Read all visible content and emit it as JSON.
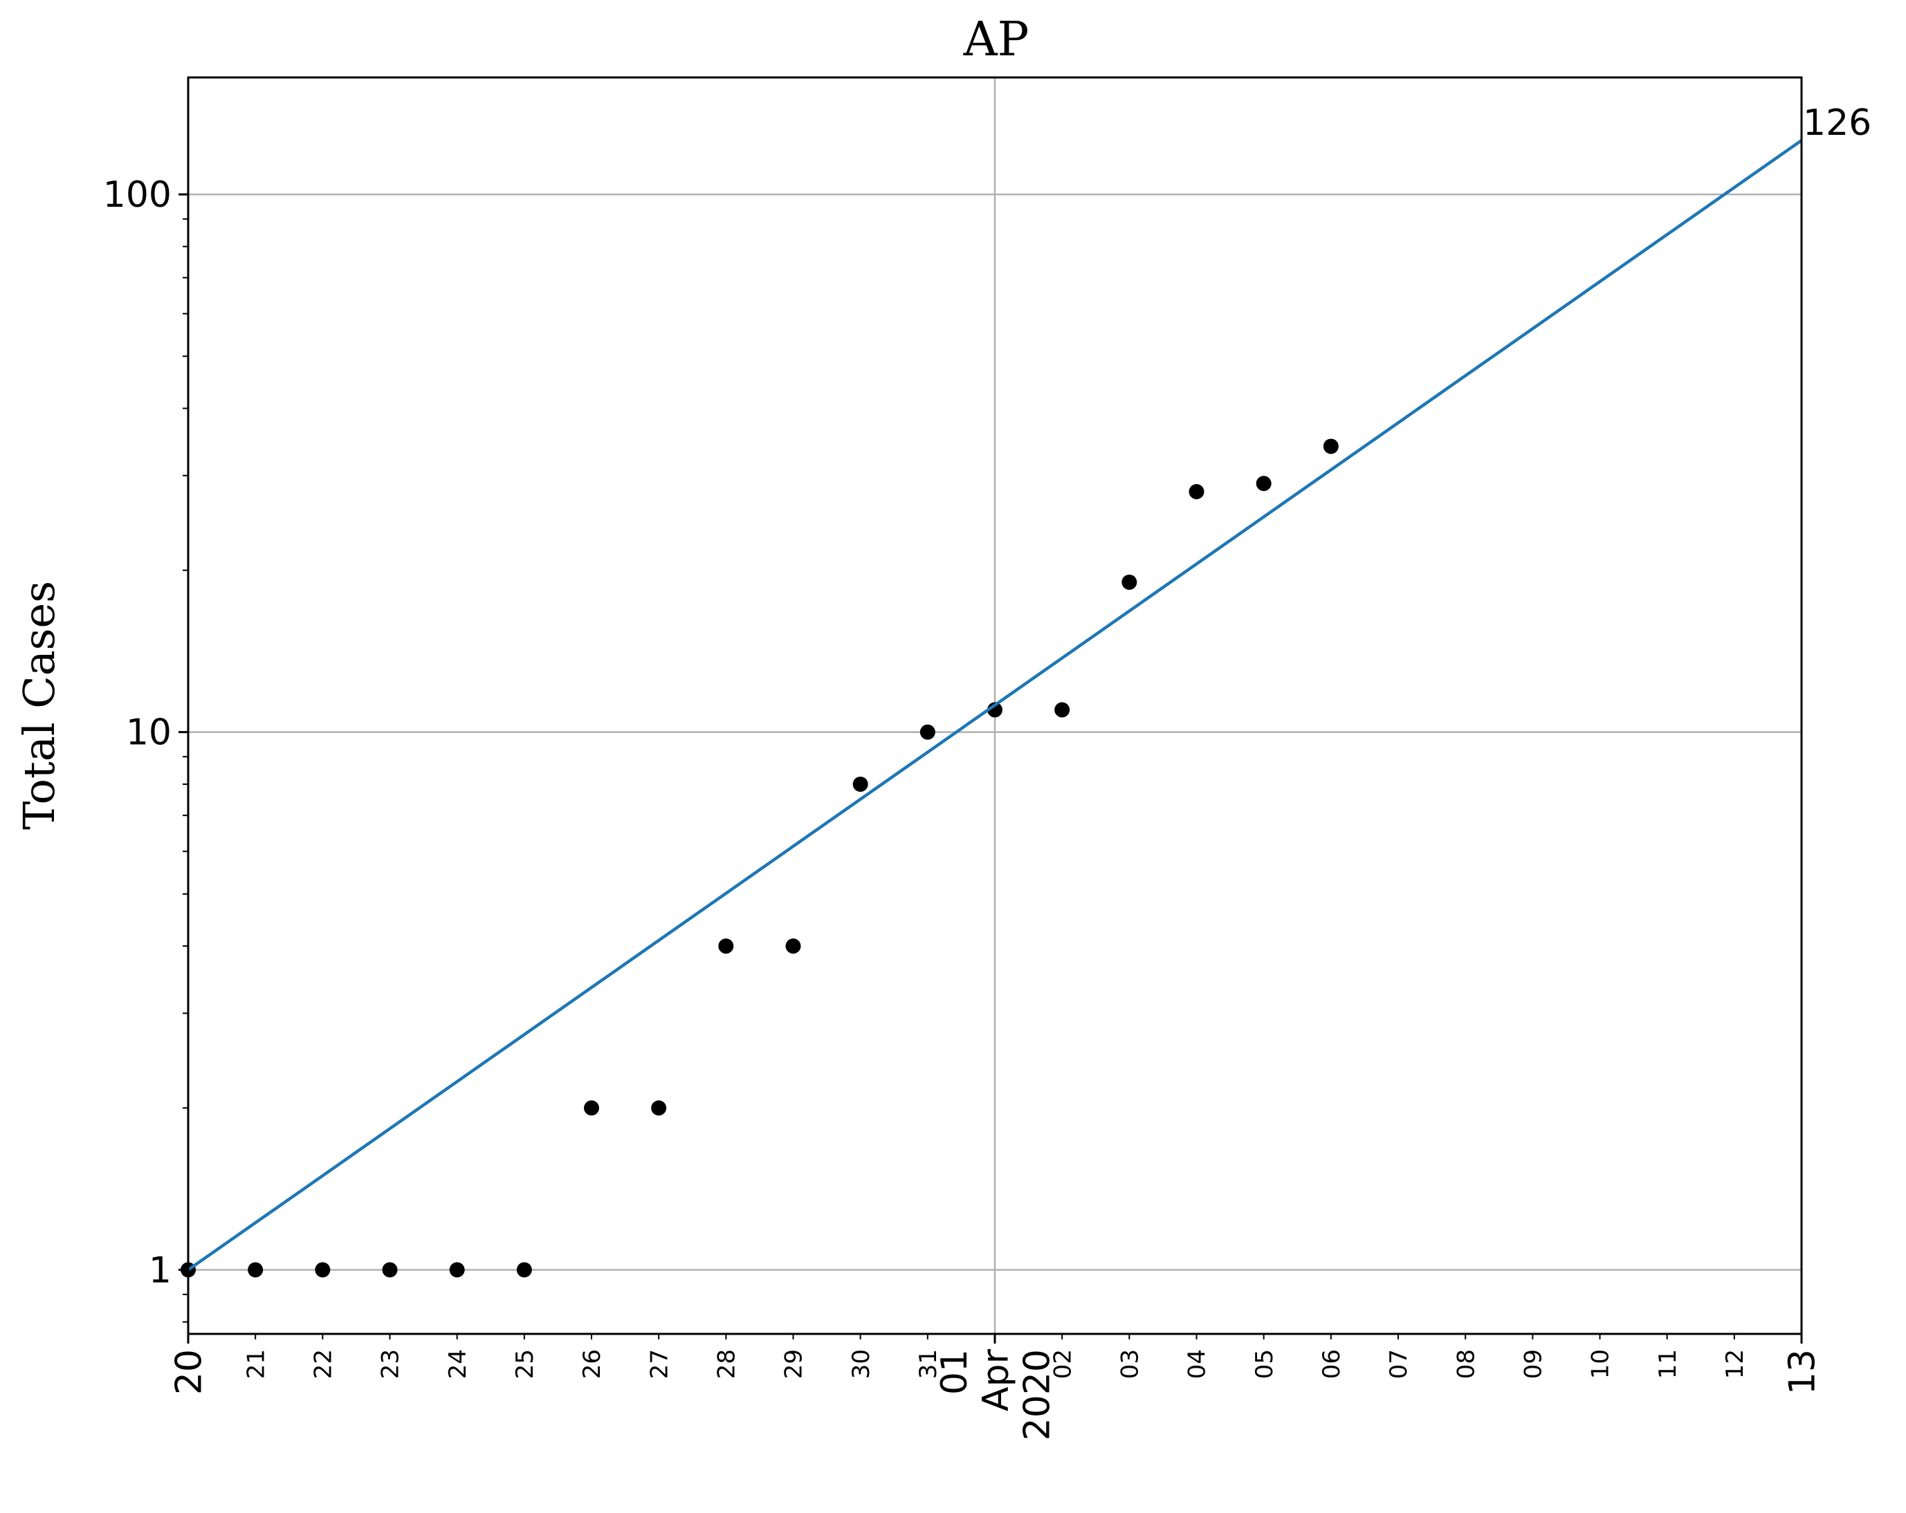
{
  "chart_data": {
    "type": "scatter",
    "title": "AP",
    "xlabel": "",
    "ylabel": "Total Cases",
    "yscale": "log",
    "ylim": [
      0.76,
      165
    ],
    "xlim": [
      "2020-03-20",
      "2020-04-13"
    ],
    "grid": true,
    "x_tick_labels": [
      [
        "20"
      ],
      [
        "21"
      ],
      [
        "22"
      ],
      [
        "23"
      ],
      [
        "24"
      ],
      [
        "25"
      ],
      [
        "26"
      ],
      [
        "27"
      ],
      [
        "28"
      ],
      [
        "29"
      ],
      [
        "30"
      ],
      [
        "31"
      ],
      [
        "01",
        "Apr",
        "2020"
      ],
      [
        "02"
      ],
      [
        "03"
      ],
      [
        "04"
      ],
      [
        "05"
      ],
      [
        "06"
      ],
      [
        "07"
      ],
      [
        "08"
      ],
      [
        "09"
      ],
      [
        "10"
      ],
      [
        "11"
      ],
      [
        "12"
      ],
      [
        "13"
      ]
    ],
    "y_tick_labels": [
      "1",
      "10",
      "100"
    ],
    "y_tick_values": [
      1,
      10,
      100
    ],
    "series": [
      {
        "type": "scatter",
        "color": "#000000",
        "x": [
          "2020-03-20",
          "2020-03-21",
          "2020-03-22",
          "2020-03-23",
          "2020-03-24",
          "2020-03-25",
          "2020-03-26",
          "2020-03-27",
          "2020-03-28",
          "2020-03-29",
          "2020-03-30",
          "2020-03-31",
          "2020-04-01",
          "2020-04-02",
          "2020-04-03",
          "2020-04-04",
          "2020-04-05",
          "2020-04-06"
        ],
        "y": [
          1,
          1,
          1,
          1,
          1,
          1,
          2,
          2,
          4,
          4,
          8,
          10,
          11,
          11,
          19,
          28,
          29,
          34
        ]
      },
      {
        "type": "line",
        "color": "#1f77b4",
        "x": [
          "2020-03-20",
          "2020-04-13"
        ],
        "y": [
          1,
          126
        ]
      }
    ],
    "annotations": [
      {
        "text": "126",
        "x": "2020-04-13",
        "y": 126
      }
    ]
  }
}
